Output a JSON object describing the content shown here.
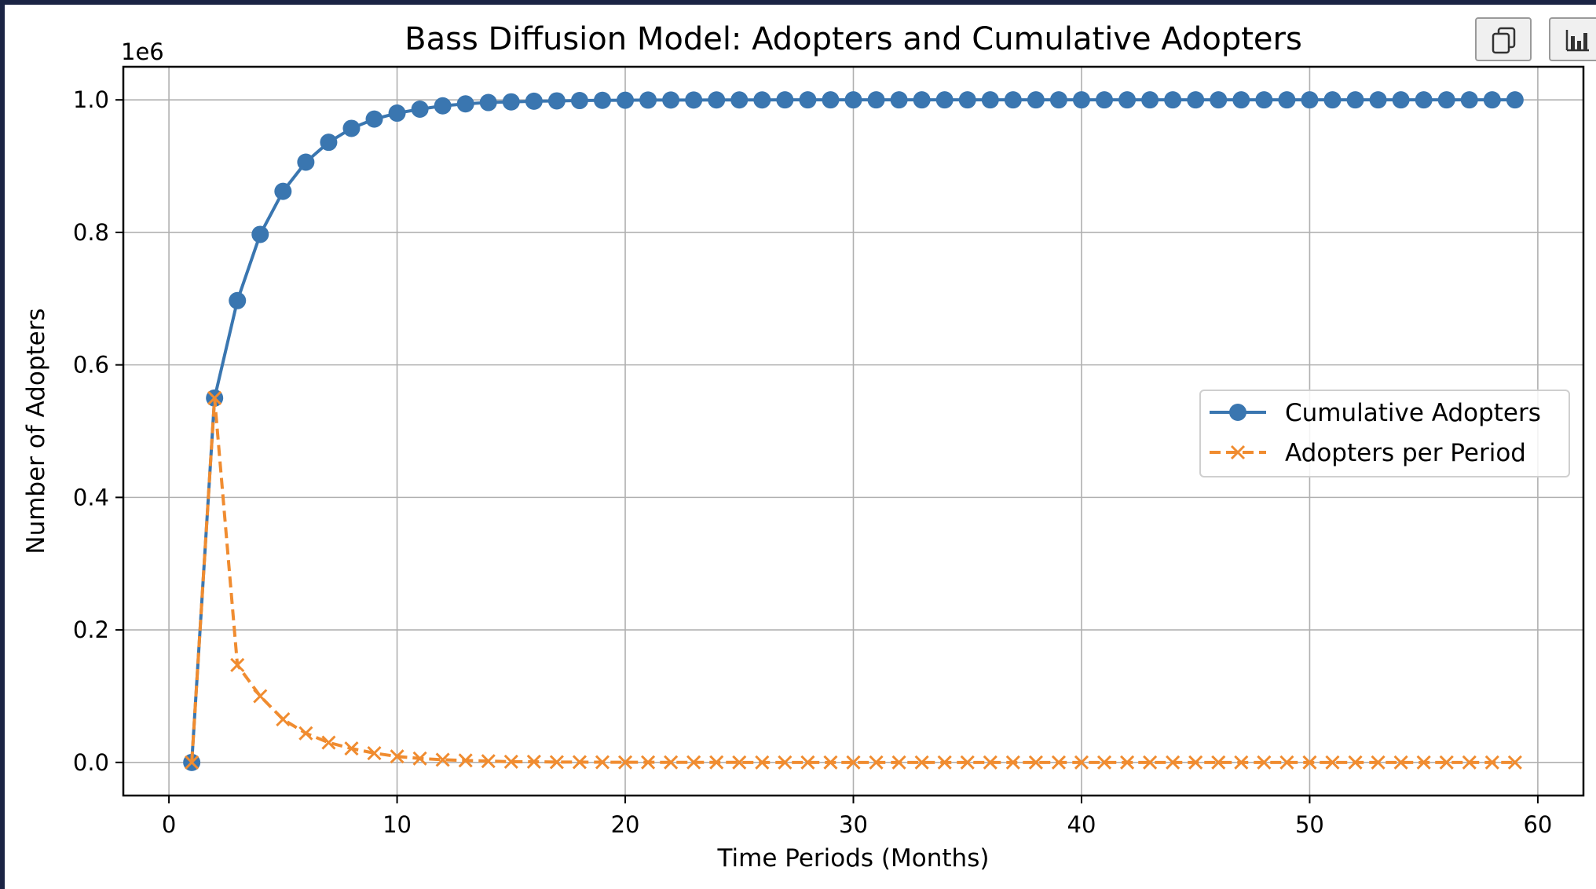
{
  "toolbar": {
    "copy_icon": "copy-icon",
    "chart_icon": "bar-chart-icon"
  },
  "chart_data": {
    "type": "line",
    "title": "Bass Diffusion Model: Adopters and Cumulative Adopters",
    "xlabel": "Time Periods (Months)",
    "ylabel": "Number of Adopters",
    "y_offset_label": "1e6",
    "xlim": [
      -2,
      62
    ],
    "ylim": [
      -0.05,
      1.05
    ],
    "xticks": [
      0,
      10,
      20,
      30,
      40,
      50,
      60
    ],
    "xtick_labels": [
      "0",
      "10",
      "20",
      "30",
      "40",
      "50",
      "60"
    ],
    "yticks": [
      0.0,
      0.2,
      0.4,
      0.6,
      0.8,
      1.0
    ],
    "ytick_labels": [
      "0.0",
      "0.2",
      "0.4",
      "0.6",
      "0.8",
      "1.0"
    ],
    "grid": true,
    "legend_position": "center-right",
    "series": [
      {
        "name": "Cumulative Adopters",
        "color": "#3a76b0",
        "marker": "circle",
        "linestyle": "solid",
        "x": [
          1,
          2,
          3,
          4,
          5,
          6,
          7,
          8,
          9,
          10,
          11,
          12,
          13,
          14,
          15,
          16,
          17,
          18,
          19,
          20,
          21,
          22,
          23,
          24,
          25,
          26,
          27,
          28,
          29,
          30,
          31,
          32,
          33,
          34,
          35,
          36,
          37,
          38,
          39,
          40,
          41,
          42,
          43,
          44,
          45,
          46,
          47,
          48,
          49,
          50,
          51,
          52,
          53,
          54,
          55,
          56,
          57,
          58,
          59
        ],
        "y": [
          0.0,
          0.55,
          0.697,
          0.797,
          0.862,
          0.906,
          0.936,
          0.957,
          0.971,
          0.98,
          0.986,
          0.991,
          0.994,
          0.996,
          0.997,
          0.998,
          0.9985,
          0.999,
          0.9993,
          0.9995,
          0.9997,
          0.9998,
          0.9998,
          0.9999,
          0.9999,
          0.9999,
          1.0,
          1.0,
          1.0,
          1.0,
          1.0,
          1.0,
          1.0,
          1.0,
          1.0,
          1.0,
          1.0,
          1.0,
          1.0,
          1.0,
          1.0,
          1.0,
          1.0,
          1.0,
          1.0,
          1.0,
          1.0,
          1.0,
          1.0,
          1.0,
          1.0,
          1.0,
          1.0,
          1.0,
          1.0,
          1.0,
          1.0,
          1.0,
          1.0
        ]
      },
      {
        "name": "Adopters per Period",
        "color": "#f08c30",
        "marker": "x",
        "linestyle": "dashed",
        "x": [
          1,
          2,
          3,
          4,
          5,
          6,
          7,
          8,
          9,
          10,
          11,
          12,
          13,
          14,
          15,
          16,
          17,
          18,
          19,
          20,
          21,
          22,
          23,
          24,
          25,
          26,
          27,
          28,
          29,
          30,
          31,
          32,
          33,
          34,
          35,
          36,
          37,
          38,
          39,
          40,
          41,
          42,
          43,
          44,
          45,
          46,
          47,
          48,
          49,
          50,
          51,
          52,
          53,
          54,
          55,
          56,
          57,
          58,
          59
        ],
        "y": [
          0.0,
          0.55,
          0.147,
          0.1,
          0.065,
          0.044,
          0.03,
          0.021,
          0.014,
          0.009,
          0.006,
          0.004,
          0.003,
          0.002,
          0.001,
          0.001,
          0.0005,
          0.0005,
          0.0003,
          0.0002,
          0.0002,
          0.0001,
          0.0001,
          0.0001,
          0.0,
          0.0,
          0.0,
          0.0,
          0.0,
          0.0,
          0.0,
          0.0,
          0.0,
          0.0,
          0.0,
          0.0,
          0.0,
          0.0,
          0.0,
          0.0,
          0.0,
          0.0,
          0.0,
          0.0,
          0.0,
          0.0,
          0.0,
          0.0,
          0.0,
          0.0,
          0.0,
          0.0,
          0.0,
          0.0,
          0.0,
          0.0,
          0.0,
          0.0,
          0.0
        ]
      }
    ]
  }
}
